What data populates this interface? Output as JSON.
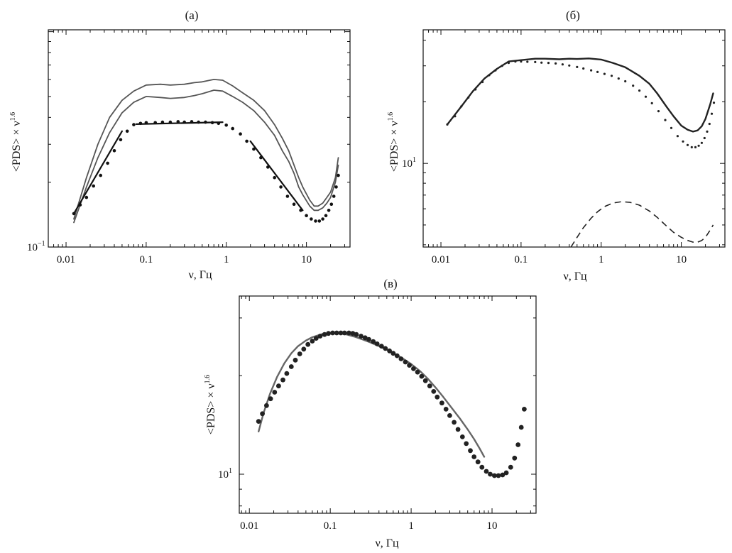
{
  "chart_data": [
    {
      "id": "a",
      "type": "line",
      "title": "(а)",
      "xlabel": "ν, Гц",
      "ylabel": "<PDS> × ν",
      "ylabel_sup": "1.6",
      "xscale": "log",
      "yscale": "log",
      "xlim": [
        0.006,
        35
      ],
      "ylim": [
        0.1,
        1.02
      ],
      "xticks": [
        {
          "value": 0.01,
          "label": "0.01"
        },
        {
          "value": 0.1,
          "label": "0.1"
        },
        {
          "value": 1,
          "label": "1"
        },
        {
          "value": 10,
          "label": "10"
        }
      ],
      "yticks": [
        {
          "value": 0.1,
          "label": "10",
          "sup": "−1"
        }
      ],
      "series": [
        {
          "style": "gray",
          "color": "#555555",
          "width": 1.8,
          "x": [
            0.0125,
            0.018,
            0.025,
            0.035,
            0.05,
            0.07,
            0.1,
            0.15,
            0.2,
            0.3,
            0.4,
            0.5,
            0.7,
            0.9,
            1.2,
            1.6,
            2.2,
            3,
            4,
            5,
            6,
            7,
            8,
            9,
            11,
            12.5,
            14,
            16,
            18,
            20,
            23,
            25
          ],
          "y": [
            0.135,
            0.21,
            0.3,
            0.4,
            0.48,
            0.53,
            0.565,
            0.57,
            0.565,
            0.57,
            0.58,
            0.585,
            0.6,
            0.595,
            0.56,
            0.52,
            0.48,
            0.43,
            0.37,
            0.32,
            0.28,
            0.24,
            0.21,
            0.19,
            0.165,
            0.155,
            0.155,
            0.16,
            0.17,
            0.18,
            0.21,
            0.26
          ]
        },
        {
          "style": "gray",
          "color": "#555555",
          "width": 1.8,
          "x": [
            0.0125,
            0.018,
            0.025,
            0.035,
            0.05,
            0.07,
            0.1,
            0.15,
            0.2,
            0.3,
            0.4,
            0.5,
            0.7,
            0.9,
            1.2,
            1.6,
            2.2,
            3,
            4,
            5,
            6,
            7,
            8,
            9,
            11,
            12.5,
            14,
            16,
            18,
            20,
            23,
            25
          ],
          "y": [
            0.13,
            0.19,
            0.26,
            0.34,
            0.42,
            0.47,
            0.5,
            0.495,
            0.49,
            0.495,
            0.505,
            0.515,
            0.535,
            0.53,
            0.5,
            0.47,
            0.43,
            0.38,
            0.33,
            0.28,
            0.25,
            0.22,
            0.19,
            0.175,
            0.155,
            0.148,
            0.148,
            0.152,
            0.16,
            0.17,
            0.2,
            0.24
          ]
        },
        {
          "style": "dotted",
          "color": "#111111",
          "radius": 2.3,
          "x": [
            0.0125,
            0.015,
            0.018,
            0.022,
            0.027,
            0.033,
            0.04,
            0.048,
            0.058,
            0.07,
            0.085,
            0.1,
            0.13,
            0.16,
            0.2,
            0.25,
            0.3,
            0.37,
            0.45,
            0.55,
            0.67,
            0.8,
            1.0,
            1.2,
            1.5,
            1.8,
            2.2,
            2.7,
            3.3,
            4.0,
            4.8,
            5.8,
            7.0,
            8.5,
            10,
            11.5,
            13,
            14.5,
            16,
            17.5,
            19,
            20.5,
            22,
            23.5,
            25
          ],
          "y": [
            0.143,
            0.157,
            0.17,
            0.192,
            0.215,
            0.245,
            0.28,
            0.315,
            0.345,
            0.37,
            0.375,
            0.378,
            0.378,
            0.38,
            0.38,
            0.382,
            0.38,
            0.382,
            0.38,
            0.38,
            0.378,
            0.375,
            0.368,
            0.355,
            0.335,
            0.31,
            0.285,
            0.26,
            0.235,
            0.21,
            0.19,
            0.172,
            0.158,
            0.148,
            0.14,
            0.135,
            0.132,
            0.132,
            0.135,
            0.14,
            0.148,
            0.158,
            0.172,
            0.19,
            0.215
          ]
        },
        {
          "style": "solid",
          "color": "#111111",
          "width": 2.2,
          "x": [
            0.0125,
            0.05
          ],
          "y": [
            0.143,
            0.345
          ]
        },
        {
          "style": "solid",
          "color": "#111111",
          "width": 2.2,
          "x": [
            0.075,
            0.9
          ],
          "y": [
            0.372,
            0.38
          ]
        },
        {
          "style": "solid",
          "color": "#111111",
          "width": 2.2,
          "x": [
            2.0,
            9.0
          ],
          "y": [
            0.31,
            0.148
          ]
        }
      ]
    },
    {
      "id": "b",
      "type": "line",
      "title": "(б)",
      "xlabel": "ν, Гц",
      "ylabel": "<PDS> × ν",
      "ylabel_sup": "1.6",
      "xscale": "log",
      "yscale": "log",
      "xlim": [
        0.006,
        35
      ],
      "ylim": [
        3.9,
        45
      ],
      "xticks": [
        {
          "value": 0.01,
          "label": "0.01"
        },
        {
          "value": 0.1,
          "label": "0.1"
        },
        {
          "value": 1,
          "label": "1"
        },
        {
          "value": 10,
          "label": "10"
        }
      ],
      "yticks": [
        {
          "value": 10,
          "label": "10",
          "sup": "1"
        }
      ],
      "series": [
        {
          "style": "solid",
          "color": "#222222",
          "width": 2.4,
          "x": [
            0.012,
            0.018,
            0.025,
            0.035,
            0.05,
            0.07,
            0.1,
            0.15,
            0.2,
            0.3,
            0.4,
            0.5,
            0.7,
            1.0,
            1.4,
            2.0,
            3.0,
            4.0,
            5.0,
            6.5,
            8.0,
            10,
            12,
            14,
            16,
            18,
            20,
            23,
            25
          ],
          "y": [
            15.5,
            19,
            22.5,
            26,
            29,
            31.5,
            32,
            32.5,
            32.5,
            32.3,
            32.5,
            32.4,
            32.6,
            32.2,
            31,
            29.5,
            26.8,
            24.5,
            22,
            19,
            17,
            15.3,
            14.6,
            14.3,
            14.5,
            15.2,
            16.5,
            19.5,
            22
          ]
        },
        {
          "style": "dotted",
          "color": "#222222",
          "radius": 1.6,
          "x": [
            0.012,
            0.015,
            0.018,
            0.022,
            0.027,
            0.033,
            0.04,
            0.048,
            0.058,
            0.07,
            0.085,
            0.1,
            0.12,
            0.15,
            0.18,
            0.22,
            0.27,
            0.33,
            0.4,
            0.5,
            0.6,
            0.75,
            0.9,
            1.1,
            1.35,
            1.65,
            2.0,
            2.5,
            3.0,
            3.6,
            4.3,
            5.2,
            6.3,
            7.5,
            9,
            10.5,
            12,
            13.5,
            15,
            16.5,
            18,
            19.5,
            21,
            22.5,
            24,
            25.5
          ],
          "y": [
            15.5,
            17,
            19,
            21,
            23,
            25,
            27,
            28.5,
            30,
            31,
            31.5,
            31.5,
            31.4,
            31.3,
            31.1,
            31.0,
            30.8,
            30.5,
            30.1,
            29.6,
            29.1,
            28.5,
            28.0,
            27.4,
            26.8,
            26.0,
            25.2,
            24.0,
            22.7,
            21.2,
            19.7,
            18.0,
            16.3,
            14.9,
            13.6,
            12.8,
            12.3,
            12.0,
            12.0,
            12.2,
            12.6,
            13.3,
            14.3,
            15.6,
            17.5,
            19.8
          ]
        },
        {
          "style": "dashed",
          "color": "#222222",
          "width": 1.6,
          "x": [
            0.42,
            0.5,
            0.6,
            0.75,
            0.9,
            1.1,
            1.4,
            1.8,
            2.3,
            3.0,
            4.0,
            5.0,
            6.5,
            8.0,
            10,
            12,
            14,
            16,
            18,
            20,
            22,
            25
          ],
          "y": [
            3.9,
            4.35,
            4.85,
            5.4,
            5.8,
            6.15,
            6.4,
            6.5,
            6.45,
            6.25,
            5.85,
            5.45,
            4.95,
            4.6,
            4.35,
            4.2,
            4.12,
            4.12,
            4.2,
            4.35,
            4.6,
            5.0
          ]
        }
      ]
    },
    {
      "id": "c",
      "type": "line",
      "title": "(в)",
      "xlabel": "ν, Гц",
      "ylabel": "<PDS> × ν",
      "ylabel_sup": "1.6",
      "xscale": "log",
      "yscale": "log",
      "xlim": [
        0.0075,
        35
      ],
      "ylim": [
        7.6,
        35
      ],
      "xticks": [
        {
          "value": 0.01,
          "label": "0.01"
        },
        {
          "value": 0.1,
          "label": "0.1"
        },
        {
          "value": 1,
          "label": "1"
        },
        {
          "value": 10,
          "label": "10"
        }
      ],
      "yticks": [
        {
          "value": 10,
          "label": "10",
          "sup": "1"
        }
      ],
      "series": [
        {
          "style": "solid",
          "color": "#666666",
          "width": 2.4,
          "x": [
            0.013,
            0.015,
            0.018,
            0.022,
            0.027,
            0.033,
            0.04,
            0.05,
            0.06,
            0.08,
            0.1,
            0.13,
            0.16,
            0.2,
            0.25,
            0.32,
            0.4,
            0.5,
            0.65,
            0.8,
            1.0,
            1.3,
            1.6,
            2.0,
            2.5,
            3.2,
            4.0,
            5.0,
            6.0,
            7.0,
            8.0
          ],
          "y": [
            13.5,
            15.4,
            17.6,
            19.8,
            21.8,
            23.4,
            24.6,
            25.6,
            26.2,
            26.8,
            26.9,
            26.9,
            26.7,
            26.3,
            25.8,
            25.2,
            24.6,
            24.0,
            23.2,
            22.5,
            21.7,
            20.6,
            19.6,
            18.4,
            17.2,
            15.9,
            14.8,
            13.7,
            12.8,
            12.0,
            11.3
          ]
        },
        {
          "style": "dots",
          "color": "#222222",
          "radius": 3.4,
          "x": [
            0.013,
            0.0145,
            0.0163,
            0.0183,
            0.0205,
            0.023,
            0.026,
            0.029,
            0.033,
            0.037,
            0.042,
            0.047,
            0.053,
            0.06,
            0.067,
            0.075,
            0.085,
            0.095,
            0.107,
            0.12,
            0.135,
            0.15,
            0.17,
            0.19,
            0.21,
            0.24,
            0.27,
            0.3,
            0.34,
            0.38,
            0.43,
            0.48,
            0.54,
            0.6,
            0.67,
            0.75,
            0.85,
            0.95,
            1.07,
            1.2,
            1.35,
            1.5,
            1.7,
            1.9,
            2.1,
            2.4,
            2.7,
            3.0,
            3.4,
            3.8,
            4.3,
            4.8,
            5.4,
            6.0,
            6.7,
            7.5,
            8.5,
            9.5,
            10.7,
            12.0,
            13.5,
            15.0,
            17.0,
            19.0,
            21.0,
            23.0,
            25.0
          ],
          "y": [
            14.5,
            15.3,
            16.2,
            17.0,
            17.8,
            18.6,
            19.4,
            20.3,
            21.3,
            22.3,
            23.3,
            24.1,
            24.9,
            25.5,
            26.0,
            26.4,
            26.7,
            26.9,
            27.0,
            27.0,
            27.0,
            27.0,
            27.0,
            26.9,
            26.7,
            26.4,
            26.1,
            25.8,
            25.4,
            25.0,
            24.6,
            24.2,
            23.8,
            23.4,
            23.0,
            22.5,
            22.0,
            21.5,
            21.0,
            20.5,
            19.9,
            19.3,
            18.6,
            17.9,
            17.2,
            16.5,
            15.8,
            15.1,
            14.4,
            13.7,
            13.0,
            12.4,
            11.8,
            11.3,
            10.9,
            10.5,
            10.2,
            10.0,
            9.9,
            9.9,
            9.95,
            10.1,
            10.5,
            11.2,
            12.3,
            13.9,
            15.8
          ]
        }
      ]
    }
  ]
}
